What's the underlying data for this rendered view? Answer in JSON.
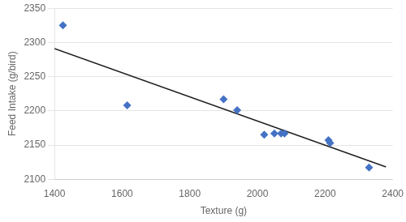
{
  "chart_data": {
    "type": "scatter",
    "xlabel": "Texture (g)",
    "ylabel": "Feed Intake (g/bird)",
    "series": [
      {
        "type": "scatter",
        "color": "#4472C4",
        "marker": "diamond",
        "x": [
          1425,
          1615,
          1900,
          1940,
          2020,
          2050,
          2070,
          2080,
          2210,
          2215,
          2330
        ],
        "values": [
          2325,
          2208,
          2217,
          2201,
          2165,
          2167,
          2167,
          2167,
          2157,
          2153,
          2117
        ]
      },
      {
        "type": "line",
        "color": "#1F1F1F",
        "line_style": "solid",
        "x": [
          1400,
          2380
        ],
        "values": [
          2291,
          2118
        ]
      }
    ],
    "xlim": [
      1400,
      2400
    ],
    "ylim": [
      2100,
      2350
    ],
    "xticks": [
      1400,
      1600,
      1800,
      2000,
      2200,
      2400
    ],
    "yticks": [
      2100,
      2150,
      2200,
      2250,
      2300,
      2350
    ],
    "grid": "y"
  }
}
